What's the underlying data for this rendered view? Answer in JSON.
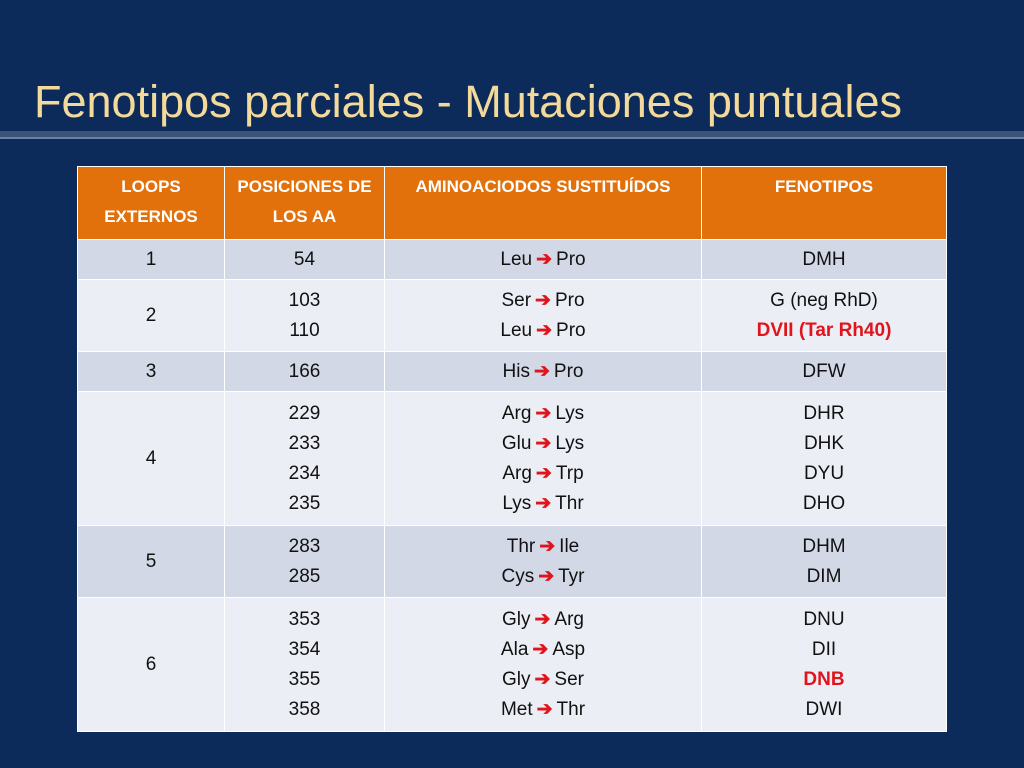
{
  "slide": {
    "title": "Fenotipos parciales - Mutaciones puntuales"
  },
  "colors": {
    "background": "#0d2b5a",
    "title": "#f3d99a",
    "header": "#e2700b",
    "highlight": "#e0141c"
  },
  "arrow_icon": "right-arrow-icon",
  "table": {
    "headers": [
      "LOOPS EXTERNOS",
      "POSICIONES DE LOS AA",
      "AMINOACIODOS SUSTITUÍDOS",
      "FENOTIPOS"
    ],
    "rows": [
      {
        "loop": "1",
        "positions": [
          "54"
        ],
        "substitutions": [
          {
            "from": "Leu",
            "to": "Pro"
          }
        ],
        "phenotypes": [
          {
            "text": "DMH",
            "highlight": false
          }
        ]
      },
      {
        "loop": "2",
        "positions": [
          "103",
          "110"
        ],
        "substitutions": [
          {
            "from": "Ser",
            "to": "Pro"
          },
          {
            "from": "Leu",
            "to": "Pro"
          }
        ],
        "phenotypes": [
          {
            "text": "G (neg RhD)",
            "highlight": false
          },
          {
            "text": "DVII (Tar Rh40)",
            "highlight": true
          }
        ]
      },
      {
        "loop": "3",
        "positions": [
          "166"
        ],
        "substitutions": [
          {
            "from": "His",
            "to": "Pro"
          }
        ],
        "phenotypes": [
          {
            "text": "DFW",
            "highlight": false
          }
        ]
      },
      {
        "loop": "4",
        "positions": [
          "229",
          "233",
          "234",
          "235"
        ],
        "substitutions": [
          {
            "from": "Arg",
            "to": "Lys"
          },
          {
            "from": "Glu",
            "to": "Lys"
          },
          {
            "from": "Arg",
            "to": "Trp"
          },
          {
            "from": "Lys",
            "to": "Thr"
          }
        ],
        "phenotypes": [
          {
            "text": "DHR",
            "highlight": false
          },
          {
            "text": "DHK",
            "highlight": false
          },
          {
            "text": "DYU",
            "highlight": false
          },
          {
            "text": "DHO",
            "highlight": false
          }
        ]
      },
      {
        "loop": "5",
        "positions": [
          "283",
          "285"
        ],
        "substitutions": [
          {
            "from": "Thr",
            "to": "Ile"
          },
          {
            "from": "Cys",
            "to": "Tyr"
          }
        ],
        "phenotypes": [
          {
            "text": "DHM",
            "highlight": false
          },
          {
            "text": "DIM",
            "highlight": false
          }
        ]
      },
      {
        "loop": "6",
        "positions": [
          "353",
          "354",
          "355",
          "358"
        ],
        "substitutions": [
          {
            "from": "Gly",
            "to": "Arg"
          },
          {
            "from": "Ala",
            "to": "Asp"
          },
          {
            "from": "Gly",
            "to": "Ser"
          },
          {
            "from": "Met",
            "to": "Thr"
          }
        ],
        "phenotypes": [
          {
            "text": "DNU",
            "highlight": false
          },
          {
            "text": "DII",
            "highlight": false
          },
          {
            "text": "DNB",
            "highlight": true
          },
          {
            "text": "DWI",
            "highlight": false
          }
        ]
      }
    ]
  }
}
